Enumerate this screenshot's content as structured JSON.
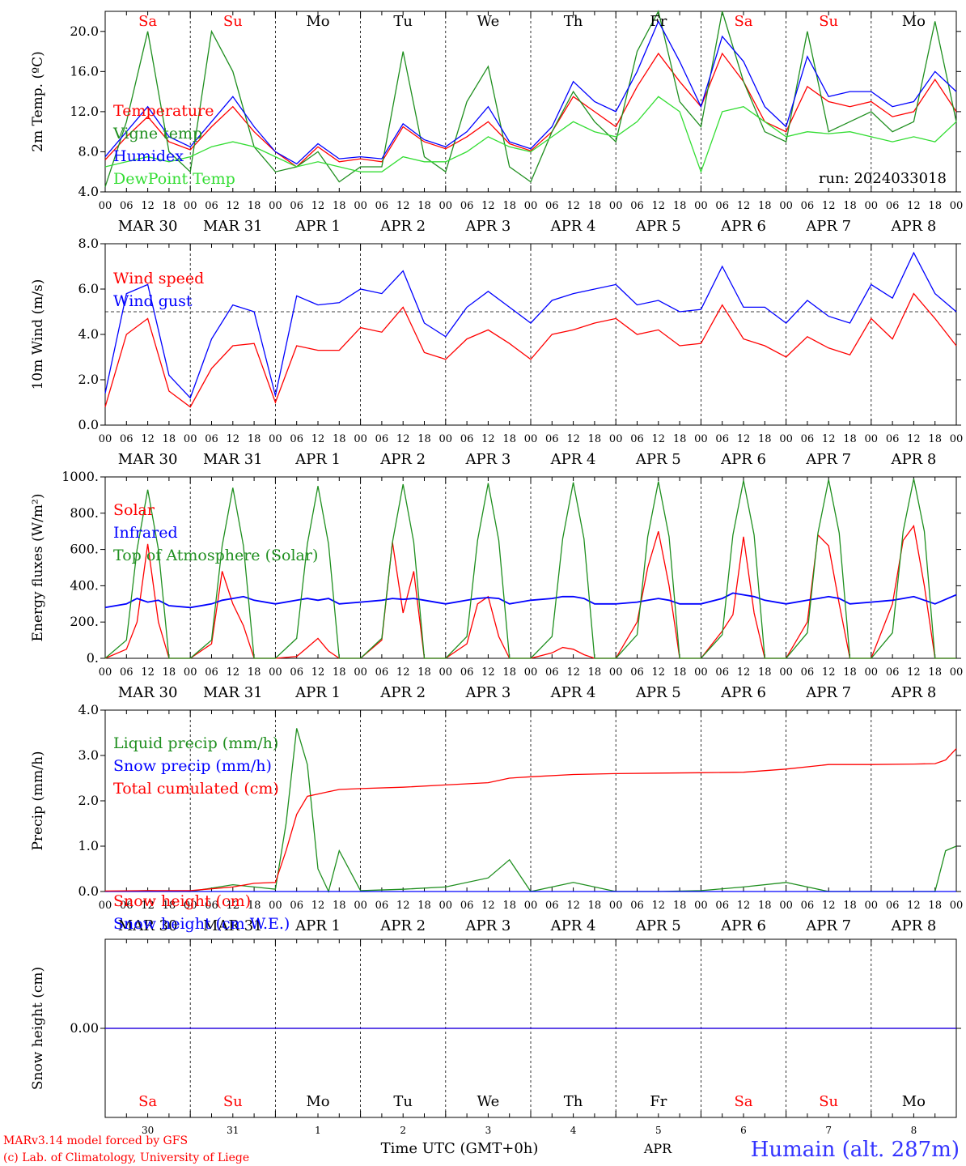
{
  "colors": {
    "red": "#ff0000",
    "green": "#1f8f1f",
    "blue": "#0000ff",
    "lightgreen": "#33dd33",
    "purple": "#8a2be2",
    "axis": "#000000",
    "sub_title": "#3333ff"
  },
  "days": {
    "weekday": [
      "Sa",
      "Su",
      "Mo",
      "Tu",
      "We",
      "Th",
      "Fr",
      "Sa",
      "Su",
      "Mo"
    ],
    "weekend": [
      true,
      true,
      false,
      false,
      false,
      false,
      false,
      true,
      true,
      false
    ],
    "date_labels": [
      "MAR 30",
      "MAR 31",
      "APR  1",
      "APR  2",
      "APR  3",
      "APR  4",
      "APR  5",
      "APR  6",
      "APR  7",
      "APR  8"
    ],
    "day_numbers": [
      "30",
      "31",
      "1",
      "2",
      "3",
      "4",
      "5",
      "6",
      "7",
      "8"
    ],
    "hour_ticks": [
      "00",
      "06",
      "12",
      "18"
    ],
    "last_tick": "00"
  },
  "chart_data": [
    {
      "type": "line",
      "ylabel": "2m Temp. (ºC)",
      "ylim": [
        4,
        22
      ],
      "yticks": [
        "4.0",
        "8.0",
        "12.0",
        "16.0",
        "20.0"
      ],
      "ytick_values": [
        4,
        8,
        12,
        16,
        20
      ],
      "annotation": "run: 2024033018",
      "x_hours": [
        0,
        6,
        12,
        18,
        24,
        30,
        36,
        42,
        48,
        54,
        60,
        66,
        72,
        78,
        84,
        90,
        96,
        102,
        108,
        114,
        120,
        126,
        132,
        138,
        144,
        150,
        156,
        162,
        168,
        174,
        180,
        186,
        192,
        198,
        204,
        210,
        216,
        222,
        228,
        234,
        240
      ],
      "series": [
        {
          "name": "Temperature",
          "color": "red",
          "values": [
            7.2,
            9.5,
            11.5,
            9.0,
            8.2,
            10.5,
            12.5,
            10.0,
            8.0,
            6.5,
            8.5,
            7.0,
            7.3,
            7.0,
            10.5,
            9.0,
            8.3,
            9.5,
            11.0,
            8.8,
            8.1,
            10.0,
            13.5,
            12.0,
            10.5,
            14.5,
            17.8,
            15.0,
            12.5,
            17.8,
            15.0,
            11.0,
            10.0,
            14.5,
            13.0,
            12.5,
            13.0,
            11.5,
            12.0,
            15.2,
            12.0
          ]
        },
        {
          "name": "Vigne temp",
          "color": "green",
          "values": [
            4.5,
            11.0,
            20.0,
            8.0,
            6.0,
            20.0,
            16.0,
            8.5,
            6.0,
            6.5,
            8.0,
            5.0,
            6.5,
            6.5,
            18.0,
            7.5,
            6.0,
            13.0,
            16.5,
            6.5,
            5.0,
            10.0,
            14.0,
            11.0,
            9.0,
            18.0,
            22.0,
            13.0,
            10.5,
            22.0,
            15.0,
            10.0,
            9.0,
            20.0,
            10.0,
            11.0,
            12.0,
            10.0,
            11.0,
            21.0,
            11.0
          ]
        },
        {
          "name": "Humidex",
          "color": "blue",
          "values": [
            7.5,
            10.0,
            12.5,
            9.5,
            8.5,
            11.0,
            13.5,
            10.5,
            8.0,
            6.8,
            8.8,
            7.3,
            7.5,
            7.3,
            10.8,
            9.2,
            8.5,
            10.0,
            12.5,
            9.0,
            8.3,
            10.5,
            15.0,
            13.0,
            12.0,
            16.0,
            21.0,
            17.0,
            12.5,
            19.5,
            17.0,
            12.5,
            10.5,
            17.5,
            13.5,
            14.0,
            14.0,
            12.5,
            13.0,
            16.0,
            14.0
          ]
        },
        {
          "name": "DewPoint Temp",
          "color": "lightgreen",
          "values": [
            6.5,
            7.0,
            7.5,
            7.0,
            7.5,
            8.5,
            9.0,
            8.5,
            7.5,
            6.5,
            7.0,
            6.5,
            6.0,
            6.0,
            7.5,
            7.0,
            7.0,
            8.0,
            9.5,
            8.5,
            8.0,
            9.5,
            11.0,
            10.0,
            9.5,
            11.0,
            13.5,
            12.0,
            6.0,
            12.0,
            12.5,
            11.0,
            9.5,
            10.0,
            9.8,
            10.0,
            9.5,
            9.0,
            9.5,
            9.0,
            11.0
          ]
        }
      ],
      "legend_placement": "top-left"
    },
    {
      "type": "line",
      "ylabel": "10m Wind (m/s)",
      "ylim": [
        0,
        8
      ],
      "yticks": [
        "0.0",
        "2.0",
        "4.0",
        "6.0",
        "8.0"
      ],
      "ytick_values": [
        0,
        2,
        4,
        6,
        8
      ],
      "reference_line": 5.0,
      "x_hours": [
        0,
        6,
        12,
        18,
        24,
        30,
        36,
        42,
        48,
        54,
        60,
        66,
        72,
        78,
        84,
        90,
        96,
        102,
        108,
        114,
        120,
        126,
        132,
        138,
        144,
        150,
        156,
        162,
        168,
        174,
        180,
        186,
        192,
        198,
        204,
        210,
        216,
        222,
        228,
        234,
        240
      ],
      "series": [
        {
          "name": "Wind speed",
          "color": "red",
          "values": [
            0.8,
            4.0,
            4.7,
            1.5,
            0.8,
            2.5,
            3.5,
            3.6,
            1.0,
            3.5,
            3.3,
            3.3,
            4.3,
            4.1,
            5.2,
            3.2,
            2.9,
            3.8,
            4.2,
            3.6,
            2.9,
            4.0,
            4.2,
            4.5,
            4.7,
            4.0,
            4.2,
            3.5,
            3.6,
            5.3,
            3.8,
            3.5,
            3.0,
            3.9,
            3.4,
            3.1,
            4.7,
            3.8,
            5.8,
            4.7,
            3.5
          ]
        },
        {
          "name": "Wind gust",
          "color": "blue",
          "values": [
            1.4,
            5.8,
            6.2,
            2.2,
            1.2,
            3.8,
            5.3,
            5.0,
            1.3,
            5.7,
            5.3,
            5.4,
            6.0,
            5.8,
            6.8,
            4.5,
            3.9,
            5.2,
            5.9,
            5.2,
            4.5,
            5.5,
            5.8,
            6.0,
            6.2,
            5.3,
            5.5,
            5.0,
            5.1,
            7.0,
            5.2,
            5.2,
            4.5,
            5.5,
            4.8,
            4.5,
            6.2,
            5.6,
            7.6,
            5.8,
            5.0
          ]
        }
      ],
      "legend_placement": "top-left"
    },
    {
      "type": "line",
      "ylabel": "Energy fluxes (W/m²)",
      "ylim": [
        0,
        1000
      ],
      "yticks": [
        "0.",
        "200.",
        "400.",
        "600.",
        "800.",
        "1000."
      ],
      "ytick_values": [
        0,
        200,
        400,
        600,
        800,
        1000
      ],
      "x_hours": [
        0,
        6,
        9,
        12,
        15,
        18,
        24,
        30,
        33,
        36,
        39,
        42,
        48,
        54,
        57,
        60,
        63,
        66,
        72,
        78,
        81,
        84,
        87,
        90,
        96,
        102,
        105,
        108,
        111,
        114,
        120,
        126,
        129,
        132,
        135,
        138,
        144,
        150,
        153,
        156,
        159,
        162,
        168,
        174,
        177,
        180,
        183,
        186,
        192,
        198,
        201,
        204,
        207,
        210,
        216,
        222,
        225,
        228,
        231,
        234,
        240
      ],
      "series": [
        {
          "name": "Solar",
          "color": "red",
          "values": [
            0,
            50,
            200,
            630,
            200,
            0,
            0,
            80,
            480,
            300,
            180,
            0,
            0,
            10,
            60,
            110,
            40,
            0,
            0,
            100,
            640,
            250,
            480,
            0,
            0,
            80,
            300,
            340,
            120,
            0,
            0,
            30,
            60,
            50,
            20,
            0,
            0,
            200,
            500,
            700,
            400,
            0,
            0,
            150,
            240,
            670,
            250,
            0,
            0,
            200,
            680,
            620,
            300,
            0,
            0,
            300,
            650,
            730,
            400,
            0,
            0
          ]
        },
        {
          "name": "Infrared",
          "color": "blue",
          "values": [
            280,
            300,
            330,
            310,
            320,
            290,
            280,
            300,
            320,
            330,
            340,
            320,
            300,
            320,
            330,
            320,
            330,
            300,
            310,
            320,
            330,
            325,
            330,
            320,
            300,
            320,
            330,
            335,
            330,
            300,
            320,
            330,
            340,
            340,
            330,
            300,
            300,
            310,
            320,
            330,
            320,
            300,
            300,
            330,
            360,
            350,
            340,
            320,
            300,
            320,
            330,
            340,
            330,
            300,
            310,
            320,
            330,
            340,
            320,
            300,
            350
          ]
        },
        {
          "name": "Top of Atmosphere (Solar)",
          "color": "green",
          "values": [
            0,
            100,
            600,
            930,
            600,
            0,
            0,
            100,
            620,
            940,
            620,
            0,
            0,
            110,
            630,
            950,
            630,
            0,
            0,
            110,
            640,
            960,
            640,
            0,
            0,
            120,
            650,
            965,
            650,
            0,
            0,
            120,
            660,
            970,
            660,
            0,
            0,
            130,
            670,
            975,
            670,
            0,
            0,
            130,
            680,
            980,
            680,
            0,
            0,
            140,
            690,
            985,
            690,
            0,
            0,
            140,
            700,
            990,
            700,
            0,
            0
          ]
        }
      ],
      "legend_placement": "top-left"
    },
    {
      "type": "line",
      "ylabel": "Precip (mm/h)",
      "ylim": [
        0,
        4
      ],
      "yticks": [
        "0.0",
        "1.0",
        "2.0",
        "3.0",
        "4.0"
      ],
      "ytick_values": [
        0,
        1,
        2,
        3,
        4
      ],
      "x_hours": [
        0,
        12,
        24,
        36,
        42,
        48,
        51,
        54,
        57,
        60,
        63,
        66,
        72,
        84,
        96,
        108,
        114,
        120,
        132,
        144,
        156,
        168,
        180,
        192,
        204,
        216,
        228,
        234,
        237,
        240
      ],
      "series": [
        {
          "name": "Liquid precip (mm/h)",
          "color": "green",
          "values": [
            0,
            0.02,
            0,
            0.15,
            0.1,
            0.05,
            1.5,
            3.6,
            2.8,
            0.5,
            0,
            0.9,
            0.02,
            0.05,
            0.1,
            0.3,
            0.7,
            0,
            0.2,
            0,
            0,
            0.02,
            0.1,
            0.2,
            0,
            0,
            0,
            0,
            0.9,
            1.0
          ]
        },
        {
          "name": "Snow precip (mm/h)",
          "color": "blue",
          "values": [
            0,
            0,
            0,
            0,
            0,
            0,
            0,
            0,
            0,
            0,
            0,
            0,
            0,
            0,
            0,
            0,
            0,
            0,
            0,
            0,
            0,
            0,
            0,
            0,
            0,
            0,
            0,
            0,
            0,
            0
          ]
        },
        {
          "name": "Total cumulated (cm)",
          "color": "red",
          "values": [
            0.01,
            0.02,
            0.02,
            0.1,
            0.18,
            0.2,
            0.9,
            1.7,
            2.1,
            2.15,
            2.2,
            2.25,
            2.27,
            2.3,
            2.35,
            2.4,
            2.5,
            2.53,
            2.58,
            2.6,
            2.61,
            2.62,
            2.63,
            2.7,
            2.8,
            2.8,
            2.81,
            2.82,
            2.9,
            3.15
          ]
        }
      ],
      "legend_placement": "top-left"
    },
    {
      "type": "line",
      "ylabel": "Snow height (cm)",
      "ylim": [
        -1,
        1
      ],
      "yticks": [
        "0.00"
      ],
      "ytick_values": [
        0
      ],
      "x_hours": [
        0,
        240
      ],
      "series": [
        {
          "name": "Snow height (cm)",
          "color": "red",
          "values": [
            0,
            0
          ]
        },
        {
          "name": "Snow height (cm W.E.)",
          "color": "blue",
          "values": [
            0,
            0
          ]
        }
      ],
      "legend_placement": "top-left"
    }
  ],
  "footer": {
    "credit1": "MARv3.14 model forced by GFS",
    "credit2": "(c) Lab. of Climatology, University of Liege",
    "xlabel": "Time UTC (GMT+0h)",
    "month": "APR",
    "location": "Humain (alt. 287m)"
  }
}
